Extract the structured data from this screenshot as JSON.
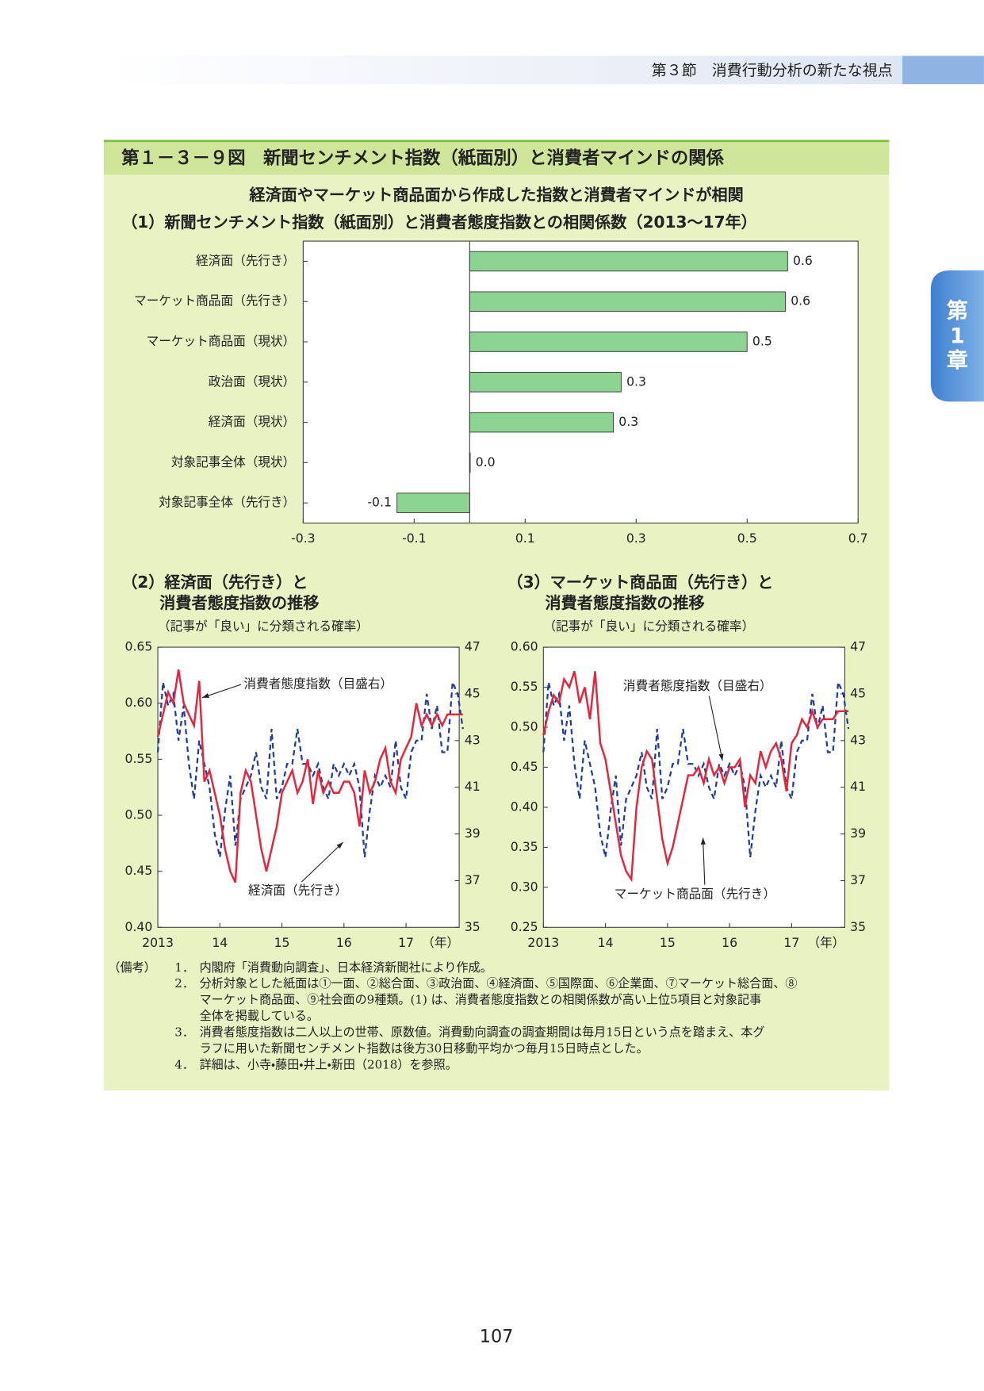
{
  "header": "第３節　消費行動分析の新たな視点",
  "side_tab": [
    "第",
    "1",
    "章"
  ],
  "figure": {
    "title": "第１－３－９図　新聞センチメント指数（紙面別）と消費者マインドの関係",
    "subtitle": "経済面やマーケット商品面から作成した指数と消費者マインドが相関"
  },
  "chart_data": [
    {
      "type": "bar",
      "orientation": "horizontal",
      "title": "（1）新聞センチメント指数（紙面別）と消費者態度指数との相関係数（2013～17年）",
      "categories": [
        "経済面（先行き）",
        "マーケット商品面（先行き）",
        "マーケット商品面（現状）",
        "政治面（現状）",
        "経済面（現状）",
        "対象記事全体（現状）",
        "対象記事全体（先行き）"
      ],
      "values": [
        0.573,
        0.569,
        0.5,
        0.273,
        0.259,
        0.001,
        -0.131
      ],
      "value_labels": [
        "0.6",
        "0.6",
        "0.5",
        "0.3",
        "0.3",
        "0.0",
        "-0.1"
      ],
      "color": "#8dd492",
      "xlim": [
        -0.3,
        0.7
      ],
      "xticks": [
        -0.3,
        -0.1,
        0.1,
        0.3,
        0.5,
        0.7
      ]
    },
    {
      "type": "line",
      "title": [
        "（2）経済面（先行き）と",
        "消費者態度指数の推移"
      ],
      "ylabel": "（記事が「良い」に分類される確率）",
      "xlabel": "（年）",
      "categories": [
        "2013",
        null,
        null,
        null,
        null,
        null,
        null,
        null,
        null,
        null,
        null,
        null,
        "14",
        null,
        null,
        null,
        null,
        null,
        null,
        null,
        null,
        null,
        null,
        null,
        "15",
        null,
        null,
        null,
        null,
        null,
        null,
        null,
        null,
        null,
        null,
        null,
        "16",
        null,
        null,
        null,
        null,
        null,
        null,
        null,
        null,
        null,
        null,
        null,
        "17",
        null,
        null,
        null,
        null,
        null,
        null,
        null,
        null,
        null,
        null,
        null
      ],
      "ylim": [
        0.4,
        0.65
      ],
      "yticks": [
        {
          "value": 0.4,
          "label": "0.40"
        },
        {
          "value": 0.45,
          "label": "0.45"
        },
        {
          "value": 0.5,
          "label": "0.50"
        },
        {
          "value": 0.55,
          "label": "0.55"
        },
        {
          "value": 0.6,
          "label": "0.60"
        },
        {
          "value": 0.65,
          "label": "0.65"
        }
      ],
      "y2lim": [
        35,
        47
      ],
      "y2ticks": [
        35,
        37,
        39,
        41,
        43,
        45,
        47
      ],
      "series": [
        {
          "name": "経済面（先行き）",
          "color": "#e8243c",
          "line_style": "solid",
          "values": [
            0.57,
            0.59,
            0.61,
            0.6,
            0.63,
            0.6,
            0.59,
            0.58,
            0.62,
            0.53,
            0.54,
            0.52,
            0.5,
            0.47,
            0.45,
            0.44,
            0.52,
            0.54,
            0.53,
            0.5,
            0.47,
            0.45,
            0.47,
            0.49,
            0.52,
            0.53,
            0.54,
            0.52,
            0.53,
            0.55,
            0.51,
            0.54,
            0.52,
            0.53,
            0.52,
            0.52,
            0.53,
            0.53,
            0.52,
            0.49,
            0.54,
            0.52,
            0.53,
            0.55,
            0.56,
            0.53,
            0.52,
            0.55,
            0.56,
            0.57,
            0.6,
            0.58,
            0.59,
            0.58,
            0.59,
            0.58,
            0.59,
            0.59,
            0.59,
            0.59
          ]
        },
        {
          "name": "消費者態度指数（目盛右）",
          "color": "#1d3c9e",
          "line_style": "dashed",
          "axis": "y2",
          "values": [
            42.5,
            45.5,
            44.5,
            45,
            43,
            44.5,
            42,
            40.5,
            43,
            42,
            41,
            39,
            38,
            40,
            41.5,
            38.5,
            40.5,
            41,
            41.5,
            42.5,
            41,
            40.5,
            43.5,
            40.5,
            41,
            42,
            42,
            43.5,
            42,
            42,
            41.5,
            42,
            41,
            40.5,
            42,
            41.5,
            42,
            41.5,
            42,
            41,
            38,
            40,
            41.5,
            41,
            41.5,
            41,
            43,
            41,
            40.5,
            42.5,
            43,
            43,
            45,
            43.5,
            44.5,
            42.5,
            42.5,
            45.5,
            45,
            43.5
          ]
        }
      ]
    },
    {
      "type": "line",
      "title": [
        "（3）マーケット商品面（先行き）と",
        "消費者態度指数の推移"
      ],
      "ylabel": "（記事が「良い」に分類される確率）",
      "xlabel": "（年）",
      "categories": [
        "2013",
        null,
        null,
        null,
        null,
        null,
        null,
        null,
        null,
        null,
        null,
        null,
        "14",
        null,
        null,
        null,
        null,
        null,
        null,
        null,
        null,
        null,
        null,
        null,
        "15",
        null,
        null,
        null,
        null,
        null,
        null,
        null,
        null,
        null,
        null,
        null,
        "16",
        null,
        null,
        null,
        null,
        null,
        null,
        null,
        null,
        null,
        null,
        null,
        "17",
        null,
        null,
        null,
        null,
        null,
        null,
        null,
        null,
        null,
        null,
        null
      ],
      "ylim": [
        0.25,
        0.6
      ],
      "yticks": [
        {
          "value": 0.25,
          "label": "0.25"
        },
        {
          "value": 0.3,
          "label": "0.30"
        },
        {
          "value": 0.35,
          "label": "0.35"
        },
        {
          "value": 0.4,
          "label": "0.40"
        },
        {
          "value": 0.45,
          "label": "0.45"
        },
        {
          "value": 0.5,
          "label": "0.50"
        },
        {
          "value": 0.55,
          "label": "0.55"
        },
        {
          "value": 0.6,
          "label": "0.60"
        }
      ],
      "y2lim": [
        35,
        47
      ],
      "y2ticks": [
        35,
        37,
        39,
        41,
        43,
        45,
        47
      ],
      "series": [
        {
          "name": "マーケット商品面（先行き）",
          "color": "#e8243c",
          "line_style": "solid",
          "values": [
            0.49,
            0.52,
            0.54,
            0.53,
            0.56,
            0.55,
            0.57,
            0.53,
            0.55,
            0.51,
            0.57,
            0.48,
            0.46,
            0.42,
            0.38,
            0.34,
            0.32,
            0.31,
            0.4,
            0.45,
            0.47,
            0.46,
            0.41,
            0.36,
            0.33,
            0.35,
            0.38,
            0.41,
            0.44,
            0.44,
            0.45,
            0.43,
            0.46,
            0.44,
            0.45,
            0.43,
            0.45,
            0.45,
            0.46,
            0.4,
            0.44,
            0.43,
            0.47,
            0.45,
            0.47,
            0.48,
            0.46,
            0.42,
            0.48,
            0.49,
            0.51,
            0.5,
            0.52,
            0.5,
            0.51,
            0.51,
            0.51,
            0.52,
            0.52,
            0.52
          ]
        },
        {
          "name": "消費者態度指数（目盛右）",
          "color": "#1d3c9e",
          "line_style": "dashed",
          "axis": "y2",
          "values": [
            42.5,
            45.5,
            44.5,
            45,
            43,
            44.5,
            42,
            40.5,
            43,
            42,
            41,
            39,
            38,
            40,
            41.5,
            38.5,
            40.5,
            41,
            41.5,
            42.5,
            41,
            40.5,
            43.5,
            40.5,
            41,
            42,
            42,
            43.5,
            42,
            42,
            41.5,
            42,
            41,
            40.5,
            42,
            41.5,
            42,
            41.5,
            42,
            41,
            38,
            40,
            41.5,
            41,
            41.5,
            41,
            43,
            41,
            40.5,
            42.5,
            43,
            43,
            45,
            43.5,
            44.5,
            42.5,
            42.5,
            45.5,
            45,
            43.5
          ]
        }
      ]
    }
  ],
  "notes": {
    "label": "（備考）",
    "items": [
      {
        "num": "1．",
        "lines": [
          "内閣府「消費動向調査」、日本経済新聞社により作成。"
        ]
      },
      {
        "num": "2．",
        "lines": [
          "分析対象とした紙面は①一面、②総合面、③政治面、④経済面、⑤国際面、⑥企業面、⑦マーケット総合面、⑧",
          "マーケット商品面、⑨社会面の9種類。(1) は、消費者態度指数との相関係数が高い上位5項目と対象記事",
          "全体を掲載している。"
        ]
      },
      {
        "num": "3．",
        "lines": [
          "消費者態度指数は二人以上の世帯、原数値。消費動向調査の調査期間は毎月15日という点を踏まえ、本グ",
          "ラフに用いた新聞センチメント指数は後方30日移動平均かつ毎月15日時点とした。"
        ]
      },
      {
        "num": "4．",
        "lines": [
          "詳細は、小寺・藤田・井上・新田（2018）を参照。"
        ]
      }
    ]
  },
  "page_number": "107"
}
